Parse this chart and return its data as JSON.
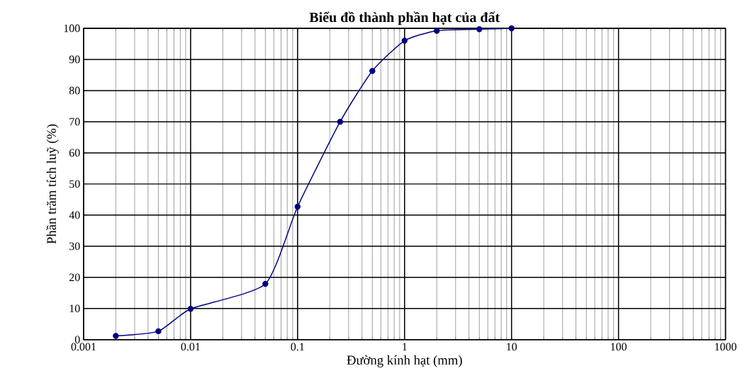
{
  "chart_data": {
    "type": "line",
    "title": "Biểu đồ thành phần hạt của đất",
    "xlabel": "Đường kính hạt (mm)",
    "ylabel": "Phần trăm tích luỹ (%)",
    "x": [
      0.002,
      0.005,
      0.01,
      0.05,
      0.1,
      0.25,
      0.5,
      1,
      2,
      5,
      10
    ],
    "series": [
      {
        "color": "#000080",
        "values": [
          1.2,
          2.7,
          9.9,
          17.9,
          42.7,
          70,
          86.3,
          96,
          99.2,
          99.7,
          100
        ]
      }
    ],
    "log": "x",
    "xlim": [
      0.001,
      1000
    ],
    "xticks": [
      0.001,
      0.01,
      0.1,
      1,
      10,
      100,
      1000
    ],
    "ylim": [
      0,
      100
    ],
    "yticks": [
      0,
      10,
      20,
      30,
      40,
      50,
      60,
      70,
      80,
      90,
      100
    ],
    "grid": true,
    "marker": "circle",
    "line_style": "solid"
  }
}
